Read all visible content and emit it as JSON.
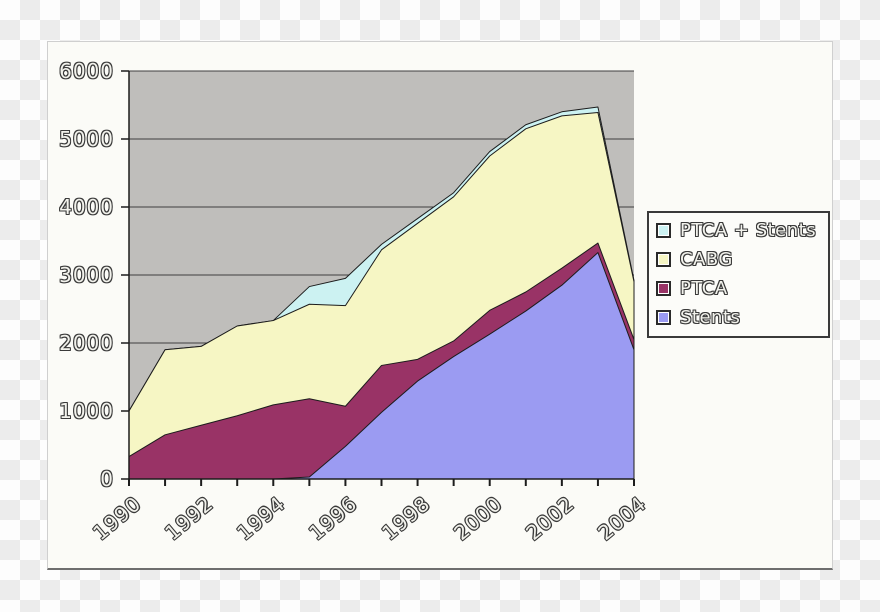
{
  "chart_data": {
    "type": "area",
    "stacked": true,
    "title": "",
    "xlabel": "",
    "ylabel": "",
    "ylim": [
      0,
      6000
    ],
    "y_ticks": [
      0,
      1000,
      2000,
      3000,
      4000,
      5000,
      6000
    ],
    "x": [
      "1990",
      "1991",
      "1992",
      "1993",
      "1994",
      "1995",
      "1996",
      "1997",
      "1998",
      "1999",
      "2000",
      "2001",
      "2002",
      "2003",
      "2004"
    ],
    "x_labeled_ticks": [
      "1990",
      "1992",
      "1994",
      "1996",
      "1998",
      "2000",
      "2002",
      "2004"
    ],
    "series": [
      {
        "name": "Stents",
        "color": "#9b9bf2",
        "values": [
          0,
          0,
          0,
          0,
          0,
          30,
          480,
          980,
          1440,
          1800,
          2130,
          2470,
          2850,
          3330,
          1900
        ]
      },
      {
        "name": "PTCA",
        "color": "#993366",
        "values": [
          330,
          650,
          790,
          930,
          1090,
          1150,
          590,
          690,
          320,
          230,
          350,
          280,
          250,
          140,
          150
        ]
      },
      {
        "name": "CABG",
        "color": "#f6f6c4",
        "values": [
          670,
          1250,
          1160,
          1320,
          1240,
          1390,
          1480,
          1700,
          2000,
          2120,
          2270,
          2400,
          2240,
          1920,
          850
        ]
      },
      {
        "name": "PTCA + Stents",
        "color": "#ccf2f2",
        "values": [
          0,
          0,
          0,
          0,
          0,
          260,
          400,
          80,
          70,
          60,
          65,
          60,
          60,
          80,
          20
        ]
      }
    ],
    "legend": {
      "position": "right",
      "entries": [
        "PTCA + Stents",
        "CABG",
        "PTCA",
        "Stents"
      ]
    },
    "grid": true,
    "plot_background": "#bfbebb",
    "gridline_color": "#3f3f3f",
    "axis_color": "#1c1c1c"
  }
}
